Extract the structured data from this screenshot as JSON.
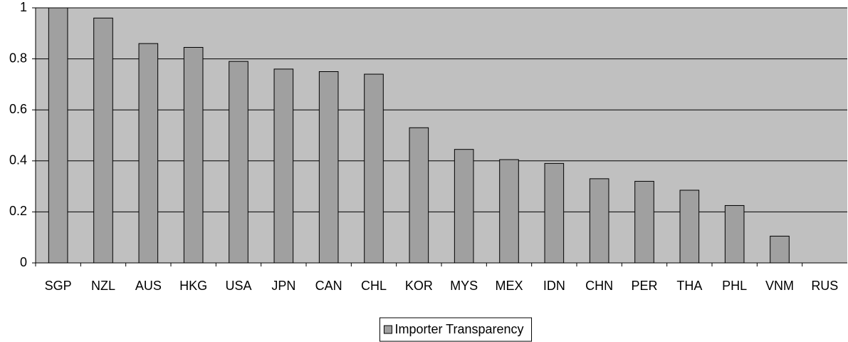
{
  "chart_data": {
    "type": "bar",
    "categories": [
      "SGP",
      "NZL",
      "AUS",
      "HKG",
      "USA",
      "JPN",
      "CAN",
      "CHL",
      "KOR",
      "MYS",
      "MEX",
      "IDN",
      "CHN",
      "PER",
      "THA",
      "PHL",
      "VNM",
      "RUS"
    ],
    "series": [
      {
        "name": "Importer Transparency",
        "color": "#a0a0a0",
        "values": [
          1,
          0.96,
          0.86,
          0.845,
          0.79,
          0.76,
          0.75,
          0.74,
          0.53,
          0.445,
          0.405,
          0.39,
          0.33,
          0.32,
          0.285,
          0.225,
          0.105,
          0
        ]
      }
    ],
    "ylim": [
      0,
      1
    ],
    "yticks": [
      0,
      0.2,
      0.4,
      0.6,
      0.8,
      1
    ],
    "grid": true,
    "legend": "bottom"
  }
}
